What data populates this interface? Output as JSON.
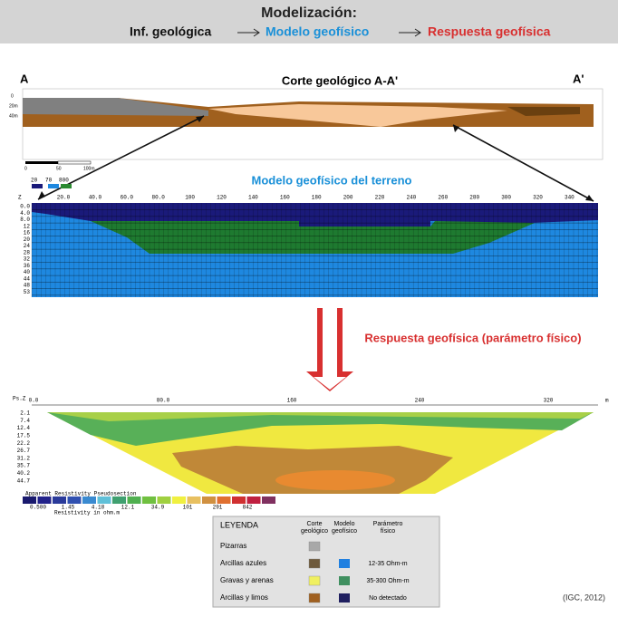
{
  "header": {
    "title": "Modelización:",
    "steps": [
      "Inf. geológica",
      "Modelo geofísico",
      "Respuesta geofísica"
    ]
  },
  "section": {
    "left": "A",
    "title": "Corte geológico A-A'",
    "right": "A'",
    "depth_labels": [
      "0",
      "20m",
      "40m"
    ],
    "scale_labels": [
      "0",
      "50",
      "100m"
    ]
  },
  "model": {
    "title": "Modelo geofísico del terreno",
    "legend": [
      "20",
      "70",
      "800"
    ],
    "z_label": "Z",
    "x_ticks": [
      "20.0",
      "40.0",
      "60.0",
      "80.0",
      "100",
      "120",
      "140",
      "160",
      "180",
      "200",
      "220",
      "240",
      "260",
      "280",
      "300",
      "320",
      "340"
    ],
    "y_ticks": [
      "0.0",
      "4.0",
      "8.0",
      "12",
      "16",
      "20",
      "24",
      "28",
      "32",
      "36",
      "40",
      "44",
      "48",
      "53"
    ]
  },
  "arrow_label": "Respuesta geofísica (parámetro físico)",
  "pseudo": {
    "z_label": "Ps.Z",
    "x_ticks": [
      "0.0",
      "80.0",
      "160",
      "240",
      "320"
    ],
    "x_unit": "m",
    "y_ticks": [
      "2.1",
      "7.4",
      "12.4",
      "17.5",
      "22.2",
      "26.7",
      "31.2",
      "35.7",
      "40.2",
      "44.7"
    ],
    "legend_title": "Apparent Resistivity Pseudosection",
    "legend_values": [
      "0.500",
      "1.45",
      "4.18",
      "12.1",
      "34.9",
      "101",
      "291",
      "842"
    ],
    "legend_unit": "Resistivity in ohm.m"
  },
  "legend": {
    "title": "LEYENDA",
    "columns": [
      "Corte geológico",
      "Modelo geofísico",
      "Parámetro físico"
    ],
    "rows": [
      [
        "Pizarras",
        ""
      ],
      [
        "Arcillas azules",
        "12-35 Ohm-m"
      ],
      [
        "Gravas y arenas",
        "35-300 Ohm-m"
      ],
      [
        "Arcillas y limos",
        "No detectado"
      ]
    ]
  },
  "source": "(IGC, 2012)"
}
